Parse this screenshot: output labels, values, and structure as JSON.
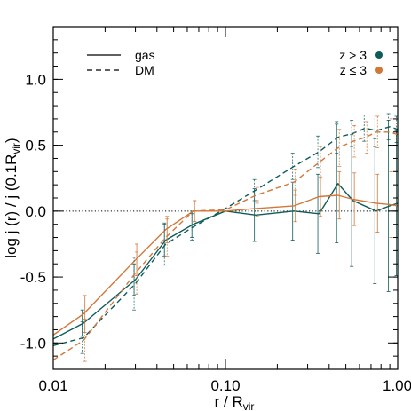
{
  "chart_data": {
    "type": "line",
    "xscale": "log",
    "xlim": [
      0.01,
      1.0
    ],
    "ylim": [
      -1.2,
      1.4
    ],
    "xlabel": "r / R",
    "xlabel_sub": "vir",
    "ylabel": "log  j (r) / j (0.1R",
    "ylabel_sub": "vir",
    "ylabel_close": ")",
    "xticks": [
      {
        "v": 0.01,
        "label": "0.01"
      },
      {
        "v": 0.1,
        "label": "0.10"
      },
      {
        "v": 1.0,
        "label": "1.00"
      }
    ],
    "yticks": [
      {
        "v": -1.0,
        "label": "-1.0"
      },
      {
        "v": -0.5,
        "label": "-0.5"
      },
      {
        "v": 0.0,
        "label": "0.0"
      },
      {
        "v": 0.5,
        "label": "0.5"
      },
      {
        "v": 1.0,
        "label": "1.0"
      }
    ],
    "reference_line": {
      "y": 0,
      "style": "dotted"
    },
    "legend_linestyle": [
      {
        "label": "gas",
        "style": "solid"
      },
      {
        "label": "DM",
        "style": "dashed"
      }
    ],
    "legend_redshift": [
      {
        "label": "z > 3",
        "color": "#0e5c5a"
      },
      {
        "label": "z ≤ 3",
        "color": "#d2773a"
      }
    ],
    "colors": {
      "z_gt_3": "#0e5c5a",
      "z_le_3": "#d2773a"
    },
    "series": [
      {
        "component": "gas",
        "redshift": "z > 3",
        "style": "solid",
        "color": "#0e5c5a",
        "x": [
          0.01,
          0.015,
          0.03,
          0.045,
          0.065,
          0.1,
          0.15,
          0.25,
          0.35,
          0.45,
          0.55,
          0.75,
          0.9,
          1.0
        ],
        "y": [
          -0.97,
          -0.85,
          -0.52,
          -0.22,
          -0.1,
          0.0,
          -0.03,
          0.0,
          -0.02,
          0.21,
          0.08,
          0.0,
          0.04,
          0.06
        ],
        "err": [
          0.0,
          0.1,
          0.12,
          0.12,
          0.1,
          0.0,
          0.2,
          0.22,
          0.3,
          0.45,
          0.5,
          0.55,
          0.65,
          0.55
        ]
      },
      {
        "component": "gas",
        "redshift": "z ≤ 3",
        "style": "solid",
        "color": "#d2773a",
        "x": [
          0.01,
          0.015,
          0.03,
          0.045,
          0.065,
          0.1,
          0.15,
          0.25,
          0.35,
          0.45,
          0.55,
          0.75,
          0.9,
          1.0
        ],
        "y": [
          -0.94,
          -0.78,
          -0.37,
          -0.14,
          0.0,
          0.0,
          0.02,
          0.04,
          0.11,
          0.12,
          0.09,
          0.06,
          0.05,
          0.04
        ],
        "err": [
          0.0,
          0.14,
          0.12,
          0.1,
          0.08,
          0.0,
          0.06,
          0.12,
          0.15,
          0.18,
          0.2,
          0.22,
          0.25,
          0.25
        ]
      },
      {
        "component": "DM",
        "redshift": "z > 3",
        "style": "dashed",
        "color": "#0e5c5a",
        "x": [
          0.01,
          0.015,
          0.03,
          0.045,
          0.065,
          0.1,
          0.15,
          0.25,
          0.35,
          0.45,
          0.55,
          0.65,
          0.75,
          0.9,
          1.0
        ],
        "y": [
          -1.02,
          -0.96,
          -0.55,
          -0.25,
          -0.12,
          0.02,
          0.16,
          0.34,
          0.45,
          0.56,
          0.59,
          0.63,
          0.61,
          0.64,
          0.62
        ],
        "err": [
          0.0,
          0.12,
          0.2,
          0.16,
          0.1,
          0.0,
          0.08,
          0.1,
          0.12,
          0.12,
          0.1,
          0.1,
          0.12,
          0.1,
          0.1
        ]
      },
      {
        "component": "DM",
        "redshift": "z ≤ 3",
        "style": "dashed",
        "color": "#d2773a",
        "x": [
          0.01,
          0.015,
          0.03,
          0.045,
          0.065,
          0.1,
          0.15,
          0.25,
          0.35,
          0.45,
          0.55,
          0.65,
          0.75,
          0.9,
          1.0
        ],
        "y": [
          -1.13,
          -0.98,
          -0.47,
          -0.2,
          0.0,
          0.01,
          0.12,
          0.22,
          0.37,
          0.48,
          0.53,
          0.56,
          0.6,
          0.6,
          0.58
        ],
        "err": [
          0.0,
          0.16,
          0.16,
          0.14,
          0.08,
          0.0,
          0.06,
          0.1,
          0.12,
          0.14,
          0.12,
          0.12,
          0.12,
          0.1,
          0.1
        ]
      }
    ]
  }
}
